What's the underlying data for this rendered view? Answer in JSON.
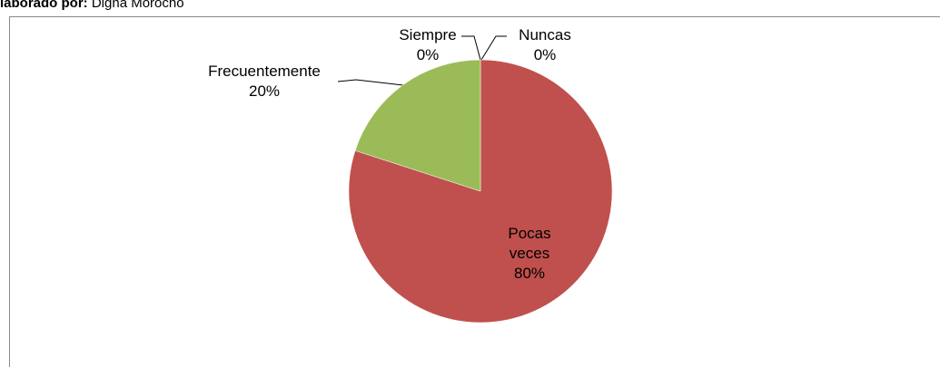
{
  "header": {
    "bold": "laborado por:",
    "text": "Digna Morocho"
  },
  "chart_data": {
    "type": "pie",
    "categories": [
      "Nuncas",
      "Pocas veces",
      "Frecuentemente",
      "Siempre"
    ],
    "values": [
      0,
      80,
      20,
      0
    ],
    "value_labels": [
      "0%",
      "80%",
      "20%",
      "0%"
    ],
    "colors": [
      "#4f81bd",
      "#c0504d",
      "#9bbb59",
      "#8064a2"
    ]
  }
}
